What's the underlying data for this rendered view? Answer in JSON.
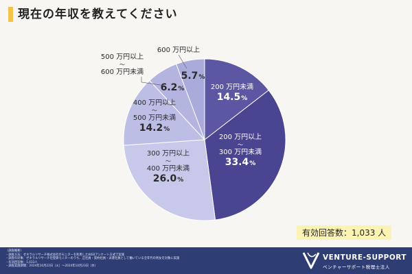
{
  "title": "現在の年収を教えてください",
  "chart_data": {
    "type": "pie",
    "start": "12 o'clock",
    "direction": "clockwise",
    "slices": [
      {
        "label": "200 万円未満",
        "value": 14.5,
        "value_text": "14.5",
        "color": "#5c57a3"
      },
      {
        "label": "200 万円以上〜300 万円未満",
        "label_lines": [
          "200 万円以上",
          "〜",
          "300 万円未満"
        ],
        "value": 33.4,
        "value_text": "33.4",
        "color": "#4a4590"
      },
      {
        "label": "300 万円以上〜400 万円未満",
        "label_lines": [
          "300 万円以上",
          "〜",
          "400 万円未満"
        ],
        "value": 26.0,
        "value_text": "26.0",
        "color": "#c8c9ea"
      },
      {
        "label": "400 万円以上〜500 万円未満",
        "label_lines": [
          "400 万円以上",
          "〜",
          "500 万円未満"
        ],
        "value": 14.2,
        "value_text": "14.2",
        "color": "#bdbee5"
      },
      {
        "label": "500 万円以上〜600 万円未満",
        "label_lines": [
          "500 万円以上",
          "〜",
          "600 万円未満"
        ],
        "value": 6.2,
        "value_text": "6.2",
        "color": "#b3b5e0"
      },
      {
        "label": "600 万円以上",
        "value": 5.7,
        "value_text": "5.7",
        "color": "#a9abdb"
      }
    ],
    "value_unit": "%"
  },
  "response_count": "有効回答数：1,033 人",
  "footer": {
    "notes_heading": "〈調査概要〉",
    "notes": [
      "・調査方法：ゼネラルリサーチ株式会社のモニターを利用したWEBアンケート方式で実施",
      "・調査の対象：ゼネラルリサーチ社登録モニターのうち、正社員・契約社員・派遣社員として働いている全年代の男女を対象に実施",
      "・有効回答数：1,033人",
      "・調査実施期間：2024年10月22日（火）〜2024年10月23日（水）"
    ],
    "brand": "VENTURE-SUPPORT",
    "brand_sub": "ベンチャーサポート税理士法人"
  }
}
